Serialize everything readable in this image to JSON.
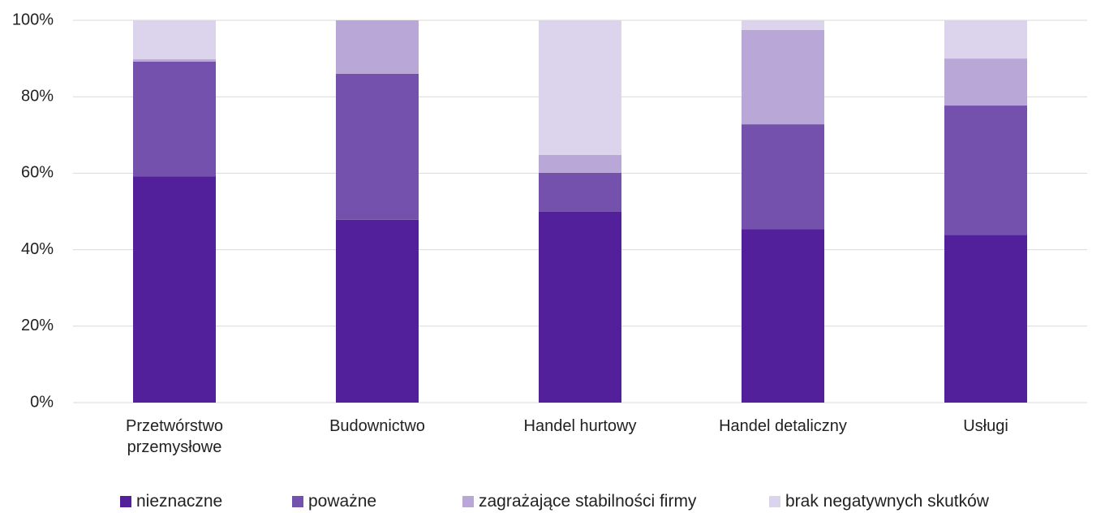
{
  "chart_data": {
    "type": "stacked_bar",
    "categories": [
      "Przetwórstwo przemysłowe",
      "Budownictwo",
      "Handel hurtowy",
      "Handel detaliczny",
      "Usługi"
    ],
    "series": [
      {
        "name": "nieznaczne",
        "color": "#51209a",
        "values": [
          59.2,
          47.8,
          49.9,
          45.4,
          43.9
        ]
      },
      {
        "name": "poważne",
        "color": "#7451ad",
        "values": [
          30.0,
          38.2,
          10.2,
          27.4,
          33.8
        ]
      },
      {
        "name": "zagrażające stabilności firmy",
        "color": "#b8a7d7",
        "values": [
          0.6,
          14.0,
          4.7,
          24.7,
          12.3
        ]
      },
      {
        "name": "brak negatywnych skutków",
        "color": "#dcd3ec",
        "values": [
          10.2,
          0,
          35.2,
          2.5,
          10.0
        ]
      }
    ],
    "ylim": [
      0,
      100
    ],
    "yticks": [
      {
        "value": 0,
        "label": "0%"
      },
      {
        "value": 20,
        "label": "20%"
      },
      {
        "value": 40,
        "label": "40%"
      },
      {
        "value": 60,
        "label": "60%"
      },
      {
        "value": 80,
        "label": "80%"
      },
      {
        "value": 100,
        "label": "100%"
      }
    ],
    "grid": true
  }
}
